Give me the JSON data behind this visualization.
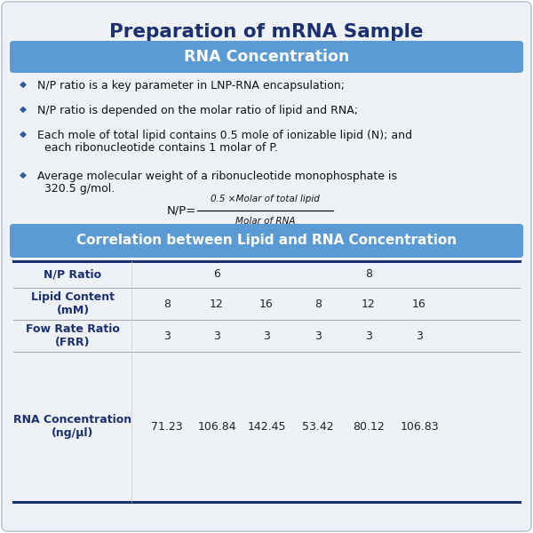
{
  "title": "Preparation of mRNA Sample",
  "title_color": "#1a3070",
  "title_fontsize": 15.5,
  "section1_header": "RNA Concentration",
  "section1_bg": "#5b9bd5",
  "section1_text_color": "#ffffff",
  "section1_fontsize": 12.5,
  "bullets": [
    "N/P ratio is a key parameter in LNP-RNA encapsulation;",
    "N/P ratio is depended on the molar ratio of lipid and RNA;",
    "Each mole of total lipid contains 0.5 mole of ionizable lipid (N); and\neach ribonucleotide contains 1 molar of P.",
    "Average molecular weight of a ribonucleotide monophosphate is\n320.5 g/mol."
  ],
  "bullet_symbol": "◆",
  "bullet_fontsize": 9,
  "formula_numerator": "0.5 ×Molar of total lipid",
  "formula_denominator": "Molar of RNA",
  "section2_header": "Correlation between Lipid and RNA Concentration",
  "section2_bg": "#5b9bd5",
  "section2_text_color": "#ffffff",
  "section2_fontsize": 11,
  "table_label_fontsize": 9,
  "table_data_fontsize": 9,
  "table_bold_color": "#1a3070",
  "outer_bg": "#eef2f7",
  "outer_border": "#b8c8dc",
  "white_bg": "#ffffff"
}
